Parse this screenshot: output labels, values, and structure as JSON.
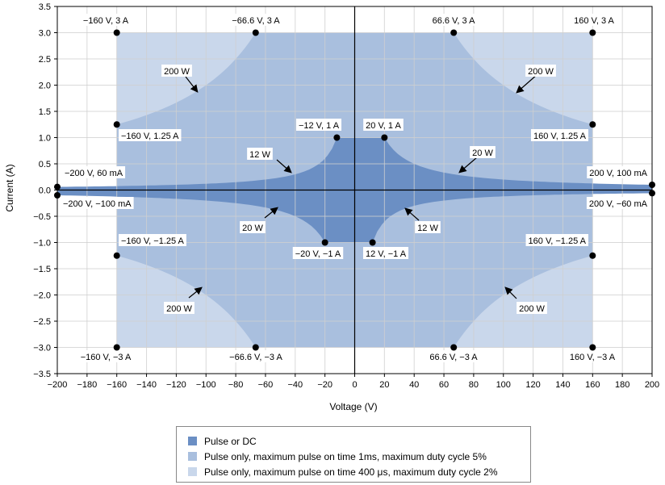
{
  "chart_data": {
    "type": "area",
    "title": "",
    "xlabel": "Voltage (V)",
    "ylabel": "Current (A)",
    "xlim": [
      -200,
      200
    ],
    "ylim": [
      -3.5,
      3.5
    ],
    "x_ticks": [
      -200,
      -180,
      -160,
      -140,
      -120,
      -100,
      -80,
      -60,
      -40,
      -20,
      0,
      20,
      40,
      60,
      80,
      100,
      120,
      140,
      160,
      180,
      200
    ],
    "y_ticks": [
      3.5,
      3.0,
      2.5,
      2.0,
      1.5,
      1.0,
      0.5,
      0.0,
      -0.5,
      -1.0,
      -1.5,
      -2.0,
      -2.5,
      -3.0,
      -3.5
    ],
    "x_tick_labels": [
      "−200",
      "−180",
      "−160",
      "−140",
      "−120",
      "−100",
      "−80",
      "−60",
      "−40",
      "−20",
      "0",
      "20",
      "40",
      "60",
      "80",
      "100",
      "120",
      "140",
      "160",
      "180",
      "200"
    ],
    "y_tick_labels": [
      "3.5",
      "3.0",
      "2.5",
      "2.0",
      "1.5",
      "1.0",
      "0.5",
      "0.0",
      "−0.5",
      "−1.0",
      "−1.5",
      "−2.0",
      "−2.5",
      "−3.0",
      "−3.5"
    ],
    "grid": true,
    "legend_position": "bottom-center",
    "series": [
      {
        "name": "Pulse or DC",
        "color": "#6b8fc4",
        "region": "Pulse or DC",
        "power_limits_W": [
          20,
          12
        ]
      },
      {
        "name": "Pulse only, maximum pulse on time 1ms, maximum duty cycle 5%",
        "color": "#a9bfde",
        "power_limit_W": 200
      },
      {
        "name": "Pulse only, maximum pulse on time 400 μs, maximum duty cycle 2%",
        "color": "#c9d7eb",
        "voltage_limit_V": 160,
        "current_limit_A": 3
      }
    ],
    "points": [
      {
        "x": -160,
        "y": 3,
        "label": "−160 V, 3 A"
      },
      {
        "x": -66.6,
        "y": 3,
        "label": "−66.6 V, 3 A"
      },
      {
        "x": 66.6,
        "y": 3,
        "label": "66.6 V, 3 A"
      },
      {
        "x": 160,
        "y": 3,
        "label": "160 V, 3 A"
      },
      {
        "x": -160,
        "y": 1.25,
        "label": "−160 V, 1.25 A"
      },
      {
        "x": 160,
        "y": 1.25,
        "label": "160 V, 1.25 A"
      },
      {
        "x": -12,
        "y": 1,
        "label": "−12 V, 1 A"
      },
      {
        "x": 20,
        "y": 1,
        "label": "20 V, 1 A"
      },
      {
        "x": -200,
        "y": 0.06,
        "label": "−200 V, 60 mA"
      },
      {
        "x": 200,
        "y": 0.1,
        "label": "200 V, 100 mA"
      },
      {
        "x": -200,
        "y": -0.1,
        "label": "−200 V, −100 mA"
      },
      {
        "x": 200,
        "y": -0.06,
        "label": "200 V, −60 mA"
      },
      {
        "x": -20,
        "y": -1,
        "label": "−20 V, −1 A"
      },
      {
        "x": 12,
        "y": -1,
        "label": "12 V, −1 A"
      },
      {
        "x": -160,
        "y": -1.25,
        "label": "−160 V, −1.25 A"
      },
      {
        "x": 160,
        "y": -1.25,
        "label": "160 V, −1.25 A"
      },
      {
        "x": -160,
        "y": -3,
        "label": "−160 V, −3 A"
      },
      {
        "x": -66.6,
        "y": -3,
        "label": "−66.6 V, −3 A"
      },
      {
        "x": 66.6,
        "y": -3,
        "label": "66.6 V, −3 A"
      },
      {
        "x": 160,
        "y": -3,
        "label": "160 V, −3 A"
      }
    ],
    "annotations": [
      {
        "text": "200 W",
        "x": -101,
        "y": 1.9
      },
      {
        "text": "200 W",
        "x": 102,
        "y": 1.9
      },
      {
        "text": "12 W",
        "x": -46,
        "y": 0.27
      },
      {
        "text": "20 W",
        "x": 72,
        "y": 0.28
      },
      {
        "text": "20 W",
        "x": -50,
        "y": -0.45
      },
      {
        "text": "12 W",
        "x": 35,
        "y": -0.47
      },
      {
        "text": "200 W",
        "x": -101,
        "y": -1.9
      },
      {
        "text": "200 W",
        "x": 102,
        "y": -1.95
      }
    ]
  }
}
